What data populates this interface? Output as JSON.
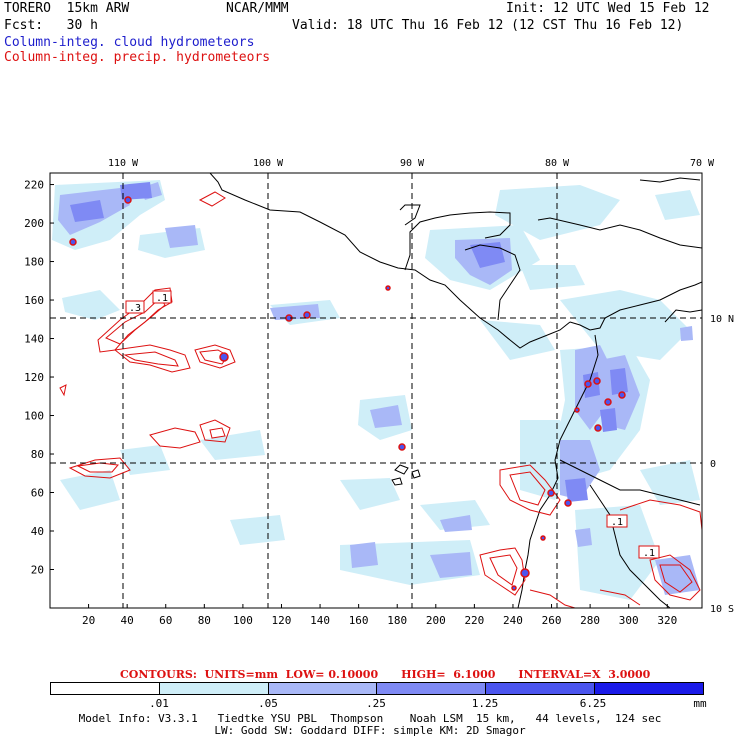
{
  "header": {
    "model": "TORERO  15km ARW",
    "center": "NCAR/MMM",
    "init": "Init: 12 UTC Wed 15 Feb 12",
    "fcst": "Fcst:   30 h",
    "valid": "Valid: 18 UTC Thu 16 Feb 12 (12 CST Thu 16 Feb 12)",
    "field_cloud": "Column-integ. cloud hydrometeors",
    "field_precip": "Column-integ. precip. hydrometeors"
  },
  "colors": {
    "cloud_label": "#1d1dcc",
    "precip_label": "#dd1111",
    "coast": "#000000",
    "contour": "#dd1111",
    "shade_levels": [
      "#ffffff",
      "#cfeef8",
      "#a9b8f7",
      "#7f8af4",
      "#4b55ee",
      "#1a1ae8"
    ]
  },
  "map": {
    "lon_labels": [
      "110 W",
      "100 W",
      "90 W",
      "80 W",
      "70 W"
    ],
    "lat_labels": [
      "10 N",
      "0",
      "10 S"
    ],
    "y_ticks": [
      "220",
      "200",
      "180",
      "160",
      "140",
      "120",
      "100",
      "80",
      "60",
      "40",
      "20"
    ],
    "x_ticks": [
      "20",
      "40",
      "60",
      "80",
      "100",
      "120",
      "140",
      "160",
      "180",
      "200",
      "220",
      "240",
      "260",
      "280",
      "300",
      "320"
    ],
    "contour_labels": [
      ".3",
      ".1",
      ".1",
      ".1"
    ]
  },
  "contour_info": "CONTOURS:  UNITS=mm  LOW= 0.10000      HIGH=  6.1000      INTERVAL=X  3.0000",
  "colorbar": {
    "labels": [
      ".01",
      ".05",
      ".25",
      "1.25",
      "6.25"
    ],
    "unit": "mm"
  },
  "model_info": {
    "line1": "Model Info: V3.3.1   Tiedtke YSU PBL  Thompson    Noah LSM  15 km,   44 levels,  124 sec",
    "line2": "LW: Godd SW: Goddard DIFF: simple KM: 2D Smagor"
  }
}
